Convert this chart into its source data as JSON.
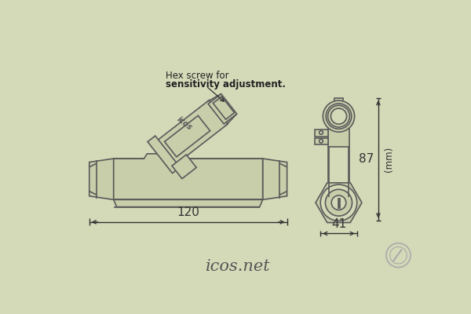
{
  "bg_color": "#d4d9b8",
  "line_color": "#5a5a5a",
  "dim_color": "#333333",
  "fill_color": "#c8ceaa",
  "title": "icos.net",
  "dim_120": "120",
  "dim_41": "41",
  "dim_87": "87",
  "dim_mm": "(mm)",
  "annotation_line1": "Hex screw for",
  "annotation_line2": "sensitivity adjustment.",
  "fig_width": 6.0,
  "fig_height": 4.0,
  "dpi": 100
}
